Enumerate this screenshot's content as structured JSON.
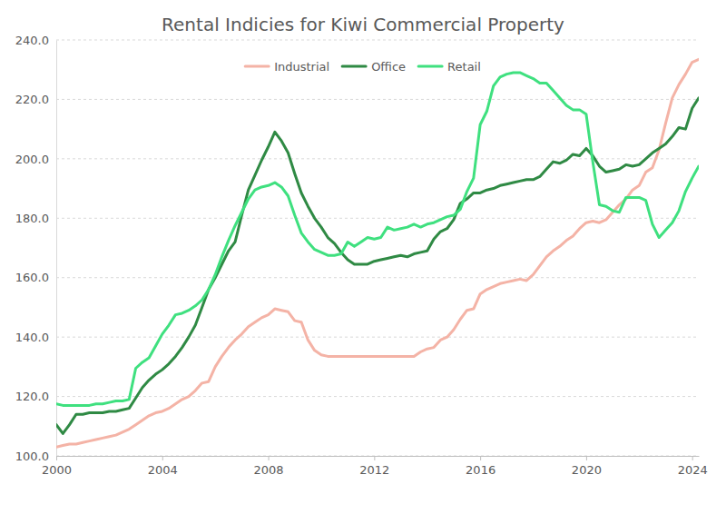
{
  "chart_data": {
    "type": "line",
    "title": "Rental Indicies for Kiwi Commercial Property",
    "legend": "top",
    "grid": true,
    "xlim": [
      2000,
      2024.25
    ],
    "xticks": [
      2000,
      2004,
      2008,
      2012,
      2016,
      2020,
      2024
    ],
    "ylim": [
      100,
      240
    ],
    "yticks": [
      {
        "value": 100,
        "label": "100.0"
      },
      {
        "value": 120,
        "label": "120.0"
      },
      {
        "value": 140,
        "label": "140.0"
      },
      {
        "value": 160,
        "label": "160.0"
      },
      {
        "value": 180,
        "label": "180.0"
      },
      {
        "value": 200,
        "label": "200.0"
      },
      {
        "value": 220,
        "label": "220.0"
      },
      {
        "value": 240,
        "label": "240.0"
      }
    ],
    "x": [
      2000,
      2000.25,
      2000.5,
      2000.75,
      2001,
      2001.25,
      2001.5,
      2001.75,
      2002,
      2002.25,
      2002.5,
      2002.75,
      2003,
      2003.25,
      2003.5,
      2003.75,
      2004,
      2004.25,
      2004.5,
      2004.75,
      2005,
      2005.25,
      2005.5,
      2005.75,
      2006,
      2006.25,
      2006.5,
      2006.75,
      2007,
      2007.25,
      2007.5,
      2007.75,
      2008,
      2008.25,
      2008.5,
      2008.75,
      2009,
      2009.25,
      2009.5,
      2009.75,
      2010,
      2010.25,
      2010.5,
      2010.75,
      2011,
      2011.25,
      2011.5,
      2011.75,
      2012,
      2012.25,
      2012.5,
      2012.75,
      2013,
      2013.25,
      2013.5,
      2013.75,
      2014,
      2014.25,
      2014.5,
      2014.75,
      2015,
      2015.25,
      2015.5,
      2015.75,
      2016,
      2016.25,
      2016.5,
      2016.75,
      2017,
      2017.25,
      2017.5,
      2017.75,
      2018,
      2018.25,
      2018.5,
      2018.75,
      2019,
      2019.25,
      2019.5,
      2019.75,
      2020,
      2020.25,
      2020.5,
      2020.75,
      2021,
      2021.25,
      2021.5,
      2021.75,
      2022,
      2022.25,
      2022.5,
      2022.75,
      2023,
      2023.25,
      2023.5,
      2023.75,
      2024,
      2024.25
    ],
    "series": [
      {
        "name": "Industrial",
        "color": "#f4b3a6",
        "values": [
          103,
          103.5,
          104,
          104,
          104.5,
          105,
          105.5,
          106,
          106.5,
          107,
          108,
          109,
          110.5,
          112,
          113.5,
          114.5,
          115,
          116,
          117.5,
          119,
          120,
          122,
          124.5,
          125,
          130,
          133.5,
          136.5,
          139,
          141,
          143.5,
          145,
          146.5,
          147.5,
          149.5,
          149,
          148.5,
          145.5,
          145,
          139,
          135.5,
          134,
          133.5,
          133.5,
          133.5,
          133.5,
          133.5,
          133.5,
          133.5,
          133.5,
          133.5,
          133.5,
          133.5,
          133.5,
          133.5,
          133.5,
          135,
          136,
          136.5,
          139,
          140,
          142.5,
          146,
          149,
          149.5,
          154.5,
          156,
          157,
          158,
          158.5,
          159,
          159.5,
          159,
          161,
          164,
          167,
          169,
          170.5,
          172.5,
          174,
          176.5,
          178.5,
          179,
          178.5,
          179.5,
          182,
          184.5,
          186.5,
          189.5,
          191,
          195.5,
          197,
          203,
          212,
          220.5,
          225,
          228.5,
          232.5,
          233.5
        ]
      },
      {
        "name": "Office",
        "color": "#2f8a44",
        "values": [
          110.5,
          107.5,
          110.5,
          114,
          114,
          114.5,
          114.5,
          114.5,
          115,
          115,
          115.5,
          116,
          119.5,
          123,
          125.5,
          127.5,
          129,
          131,
          133.5,
          136.5,
          140,
          144,
          150,
          156,
          160,
          164.5,
          169,
          172,
          181,
          189.5,
          194.5,
          199.5,
          204,
          209,
          206,
          202,
          195,
          188.5,
          184,
          180,
          177,
          173.5,
          171.5,
          168.5,
          166,
          164.5,
          164.5,
          164.5,
          165.5,
          166,
          166.5,
          167,
          167.5,
          167,
          168,
          168.5,
          169,
          173,
          175.5,
          176.5,
          179.5,
          185,
          186.5,
          188.5,
          188.5,
          189.5,
          190,
          191,
          191.5,
          192,
          192.5,
          193,
          193,
          194,
          196.5,
          199,
          198.5,
          199.5,
          201.5,
          201,
          203.5,
          201,
          197.5,
          195.5,
          196,
          196.5,
          198,
          197.5,
          198,
          200,
          202,
          203.5,
          205,
          207.5,
          210.5,
          210,
          217,
          220.5
        ]
      },
      {
        "name": "Retail",
        "color": "#3fe07f",
        "values": [
          117.5,
          117,
          117,
          117,
          117,
          117,
          117.5,
          117.5,
          118,
          118.5,
          118.5,
          119,
          129.5,
          131.5,
          133,
          137,
          141,
          144,
          147.5,
          148,
          149,
          150.5,
          152.5,
          156,
          161,
          167,
          172.5,
          177.5,
          182,
          186.5,
          189.5,
          190.5,
          191,
          192,
          190.5,
          187.5,
          181,
          175,
          172,
          169.5,
          168.5,
          167.5,
          167.5,
          168,
          172,
          170.5,
          172,
          173.5,
          173,
          173.5,
          177,
          176,
          176.5,
          177,
          178,
          177,
          178,
          178.5,
          179.5,
          180.5,
          181,
          183,
          189,
          193.5,
          211.5,
          216,
          224.5,
          227.5,
          228.5,
          229,
          229,
          228,
          227,
          225.5,
          225.5,
          223,
          220.5,
          218,
          216.5,
          216.5,
          215,
          199,
          184.5,
          184,
          182.5,
          182,
          187,
          187,
          187,
          186,
          178,
          173.5,
          176,
          178.5,
          182.5,
          189,
          193.5,
          197.5
        ]
      }
    ]
  }
}
